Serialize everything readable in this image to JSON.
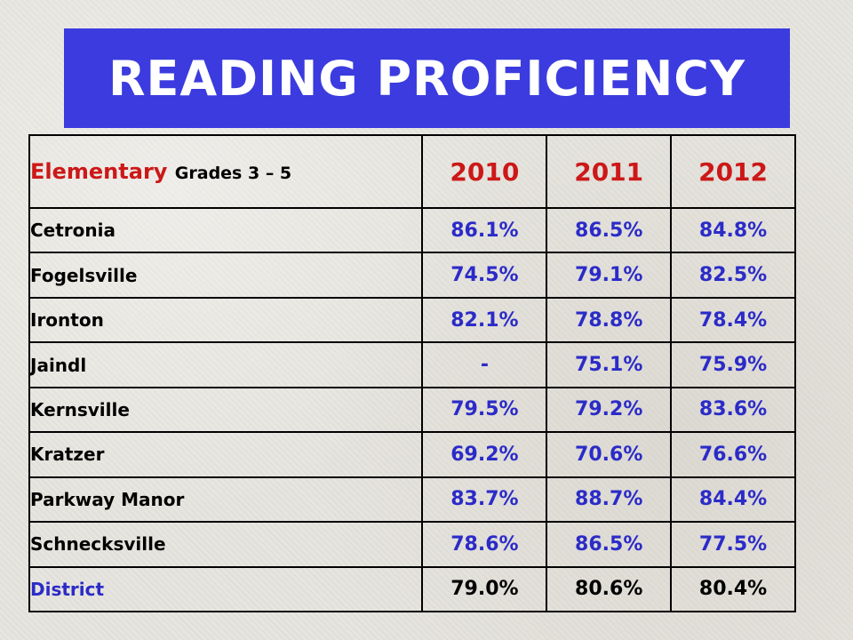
{
  "title": "READING PROFICIENCY",
  "table": {
    "header": {
      "label_main": "Elementary",
      "label_sub": "Grades 3 – 5",
      "years": [
        "2010",
        "2011",
        "2012"
      ]
    },
    "rows": [
      {
        "name": "Cetronia",
        "values": [
          "86.1%",
          "86.5%",
          "84.8%"
        ]
      },
      {
        "name": "Fogelsville",
        "values": [
          "74.5%",
          "79.1%",
          "82.5%"
        ]
      },
      {
        "name": "Ironton",
        "values": [
          "82.1%",
          "78.8%",
          "78.4%"
        ]
      },
      {
        "name": "Jaindl",
        "values": [
          "-",
          "75.1%",
          "75.9%"
        ]
      },
      {
        "name": "Kernsville",
        "values": [
          "79.5%",
          "79.2%",
          "83.6%"
        ]
      },
      {
        "name": "Kratzer",
        "values": [
          "69.2%",
          "70.6%",
          "76.6%"
        ]
      },
      {
        "name": "Parkway Manor",
        "values": [
          "83.7%",
          "88.7%",
          "84.4%"
        ]
      },
      {
        "name": "Schnecksville",
        "values": [
          "78.6%",
          "86.5%",
          "77.5%"
        ]
      }
    ],
    "district": {
      "name": "District",
      "values": [
        "79.0%",
        "80.6%",
        "80.4%"
      ]
    }
  },
  "colors": {
    "banner": "#3b3bdf",
    "header_red": "#cc1818",
    "value_blue": "#2b2bc8"
  }
}
